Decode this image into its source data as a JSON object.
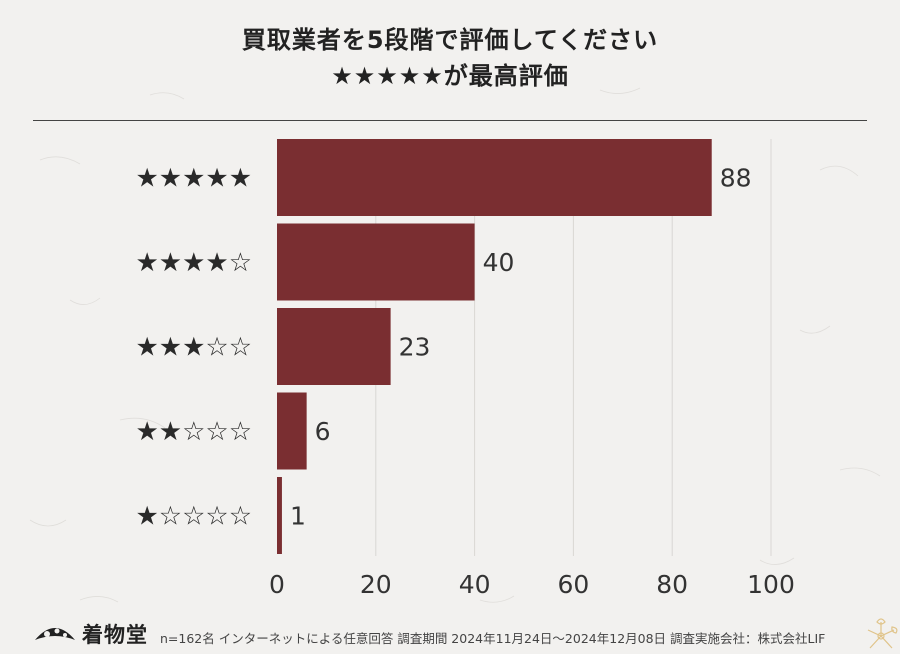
{
  "header": {
    "title_line1": "買取業者を5段階で評価してください",
    "title_line2": "★★★★★が最高評価"
  },
  "chart_data": {
    "type": "bar",
    "orientation": "horizontal",
    "categories": [
      "★★★★★",
      "★★★★☆",
      "★★★☆☆",
      "★★☆☆☆",
      "★☆☆☆☆"
    ],
    "values": [
      88,
      40,
      23,
      6,
      1
    ],
    "xlim": [
      0,
      100
    ],
    "xticks": [
      0,
      20,
      40,
      60,
      80,
      100
    ],
    "grid": true,
    "bar_color": "#7a2e31"
  },
  "footer": {
    "brand": "着物堂",
    "note": "n=162名 インターネットによる任意回答 調査期間 2024年11月24日〜2024年12月08日 調査実施会社：株式会社LIF"
  },
  "colors": {
    "background": "#f2f1ef",
    "bar": "#7a2e31",
    "text": "#222222",
    "grid": "#d9d7d4"
  }
}
